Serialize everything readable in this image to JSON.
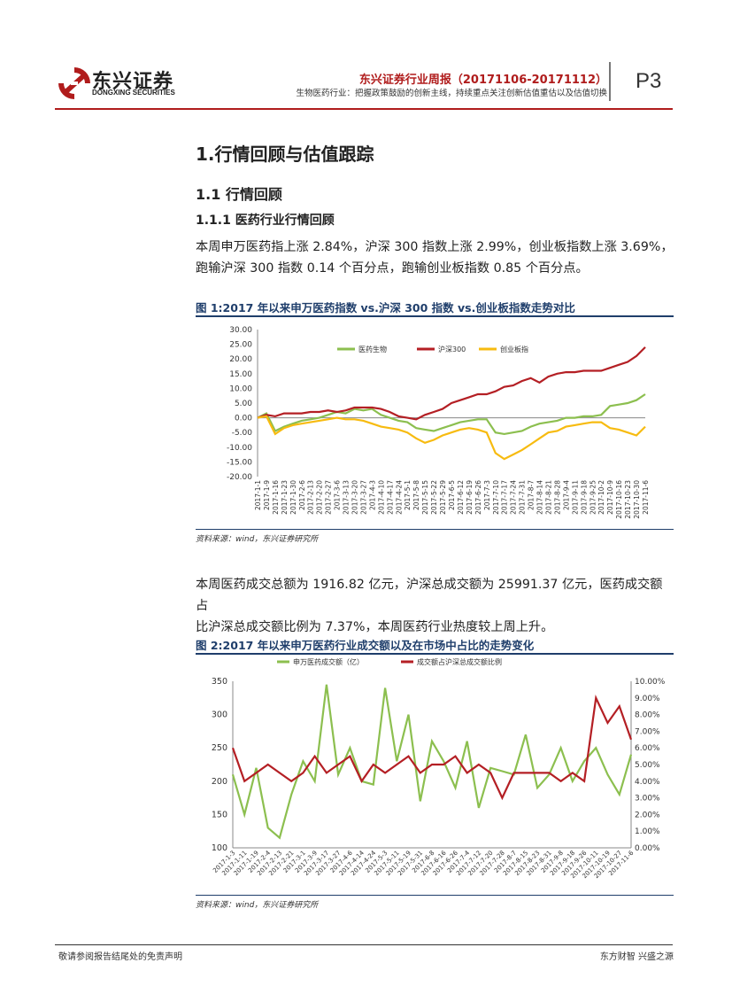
{
  "header": {
    "company_cn": "东兴证券",
    "company_en": "DONGXING SECURITIES",
    "report_title": "东兴证券行业周报（20171106-20171112）",
    "report_subtitle": "生物医药行业：把握政策鼓励的创新主线，持续重点关注创新估值重估以及估值切换",
    "page_label": "P3"
  },
  "sections": {
    "h1": "1.行情回顾与估值跟踪",
    "h2": "1.1 行情回顾",
    "h3": "1.1.1 医药行业行情回顾",
    "para1_line1": "本周申万医药指上涨 2.84%，沪深 300 指数上涨 2.99%，创业板指数上涨 3.69%，",
    "para1_line2": "跑输沪深 300 指数 0.14 个百分点，跑输创业板指数 0.85 个百分点。",
    "para2_line1": "本周医药成交总额为 1916.82 亿元，沪深总成交额为 25991.37 亿元，医药成交额占",
    "para2_line2": "比沪深总成交额比例为 7.37%，本周医药行业热度较上周上升。"
  },
  "figure1": {
    "title": "图 1:2017 年以来申万医药指数 vs.沪深 300 指数 vs.创业板指数走势对比",
    "source": "资料来源：wind，东兴证券研究所"
  },
  "figure2": {
    "title": "图 2:2017 年以来申万医药行业成交额以及在市场中占比的走势变化",
    "source": "资料来源：wind，东兴证券研究所"
  },
  "footer": {
    "left": "敬请参阅报告结尾处的免责声明",
    "right": "东方财智  兴盛之源"
  },
  "colors": {
    "brand_red": "#b01c1c",
    "figure_blue": "#1f3e6b",
    "series_green": "#8cbf4f",
    "series_red": "#b41f24",
    "series_yellow": "#f7bb10"
  },
  "chart_data": [
    {
      "type": "line",
      "title": "",
      "ylim": [
        -20,
        30
      ],
      "y_ticks": [
        "30.00",
        "25.00",
        "20.00",
        "15.00",
        "10.00",
        "5.00",
        "0.00",
        "-5.00",
        "-10.00",
        "-15.00",
        "-20.00"
      ],
      "x_ticks": [
        "2017-1-1",
        "2017-1-9",
        "2017-1-16",
        "2017-1-23",
        "2017-1-30",
        "2017-2-6",
        "2017-2-13",
        "2017-2-20",
        "2017-2-27",
        "2017-3-6",
        "2017-3-13",
        "2017-3-20",
        "2017-3-27",
        "2017-4-3",
        "2017-4-10",
        "2017-4-17",
        "2017-4-24",
        "2017-5-1",
        "2017-5-8",
        "2017-5-15",
        "2017-5-22",
        "2017-5-29",
        "2017-6-5",
        "2017-6-12",
        "2017-6-19",
        "2017-6-26",
        "2017-7-3",
        "2017-7-10",
        "2017-7-17",
        "2017-7-24",
        "2017-7-31",
        "2017-8-7",
        "2017-8-14",
        "2017-8-21",
        "2017-8-28",
        "2017-9-4",
        "2017-9-11",
        "2017-9-18",
        "2017-9-25",
        "2017-10-2",
        "2017-10-9",
        "2017-10-16",
        "2017-10-23",
        "2017-10-30",
        "2017-11-6"
      ],
      "grid": false,
      "legend": "top",
      "series": [
        {
          "name": "医药生物",
          "color": "#8cbf4f",
          "values": [
            0,
            1.5,
            -4.5,
            -3,
            -2,
            -1,
            -0.5,
            0,
            1,
            2,
            1.5,
            3,
            2.5,
            3,
            1,
            0,
            -1,
            -1.5,
            -3.5,
            -4,
            -4.5,
            -3.5,
            -2.5,
            -1.5,
            -1,
            -0.5,
            -0.5,
            -5,
            -5.5,
            -5,
            -4.5,
            -3,
            -2,
            -1.5,
            -1,
            0,
            0,
            0.5,
            0.5,
            1,
            4,
            4.5,
            5,
            6,
            8
          ]
        },
        {
          "name": "沪深300",
          "color": "#b41f24",
          "values": [
            0,
            1,
            0.5,
            1.5,
            1.5,
            1.5,
            2,
            2,
            2.5,
            2,
            2.5,
            3.5,
            3.5,
            3.5,
            3,
            2,
            0.5,
            0,
            -0.5,
            1,
            2,
            3,
            5,
            6,
            7,
            8,
            8,
            9,
            10.5,
            11,
            12.5,
            13.5,
            12,
            14,
            15,
            15.5,
            15.5,
            16,
            16,
            16,
            17,
            18,
            19,
            21,
            24
          ]
        },
        {
          "name": "创业板指",
          "color": "#f7bb10",
          "values": [
            0,
            0.5,
            -5.5,
            -3.5,
            -2.5,
            -2,
            -1.5,
            -1,
            -0.5,
            0,
            -0.5,
            -0.5,
            -1,
            -2,
            -3,
            -3.5,
            -4,
            -5,
            -7,
            -8.5,
            -7.5,
            -6,
            -5,
            -4,
            -3.5,
            -4,
            -5,
            -12,
            -14,
            -12.5,
            -11,
            -9,
            -7,
            -5,
            -4.5,
            -3,
            -2.5,
            -2,
            -1.5,
            -1.5,
            -3.5,
            -4,
            -5,
            -6,
            -3
          ]
        }
      ]
    },
    {
      "type": "line",
      "title": "",
      "ylim": [
        100,
        350
      ],
      "y2lim": [
        0,
        10
      ],
      "y_ticks": [
        "350",
        "300",
        "250",
        "200",
        "150",
        "100"
      ],
      "y2_ticks": [
        "10.00%",
        "9.00%",
        "8.00%",
        "7.00%",
        "6.00%",
        "5.00%",
        "4.00%",
        "3.00%",
        "2.00%",
        "1.00%",
        "0.00%"
      ],
      "x_ticks": [
        "2017-1-3",
        "2017-1-11",
        "2017-1-19",
        "2017-2-4",
        "2017-2-13",
        "2017-2-21",
        "2017-3-1",
        "2017-3-9",
        "2017-3-17",
        "2017-3-27",
        "2017-4-6",
        "2017-4-14",
        "2017-4-24",
        "2017-5-3",
        "2017-5-11",
        "2017-5-19",
        "2017-5-31",
        "2017-6-8",
        "2017-6-16",
        "2017-6-26",
        "2017-7-4",
        "2017-7-12",
        "2017-7-20",
        "2017-7-28",
        "2017-8-7",
        "2017-8-15",
        "2017-8-23",
        "2017-8-31",
        "2017-9-8",
        "2017-9-18",
        "2017-9-26",
        "2017-10-11",
        "2017-10-19",
        "2017-10-27",
        "2017-11-6"
      ],
      "grid": false,
      "legend": "top",
      "series": [
        {
          "name": "申万医药成交额（亿）",
          "color": "#8cbf4f",
          "axis": "left",
          "values": [
            210,
            150,
            220,
            130,
            115,
            180,
            230,
            200,
            345,
            210,
            250,
            200,
            195,
            340,
            230,
            300,
            170,
            260,
            230,
            190,
            260,
            160,
            220,
            215,
            210,
            270,
            190,
            210,
            250,
            200,
            230,
            250,
            210,
            180,
            240
          ]
        },
        {
          "name": "成交额占沪深总成交额比例",
          "color": "#b41f24",
          "axis": "right",
          "values": [
            6.0,
            4.0,
            4.5,
            5.0,
            4.5,
            4.0,
            4.5,
            5.5,
            4.5,
            5.0,
            5.5,
            4.0,
            5.0,
            4.5,
            5.0,
            5.5,
            4.5,
            5.0,
            5.0,
            5.5,
            4.5,
            5.0,
            4.5,
            3.0,
            4.5,
            4.5,
            4.5,
            4.5,
            4.0,
            4.5,
            4.0,
            9.0,
            7.5,
            8.5,
            6.5
          ]
        }
      ]
    }
  ]
}
